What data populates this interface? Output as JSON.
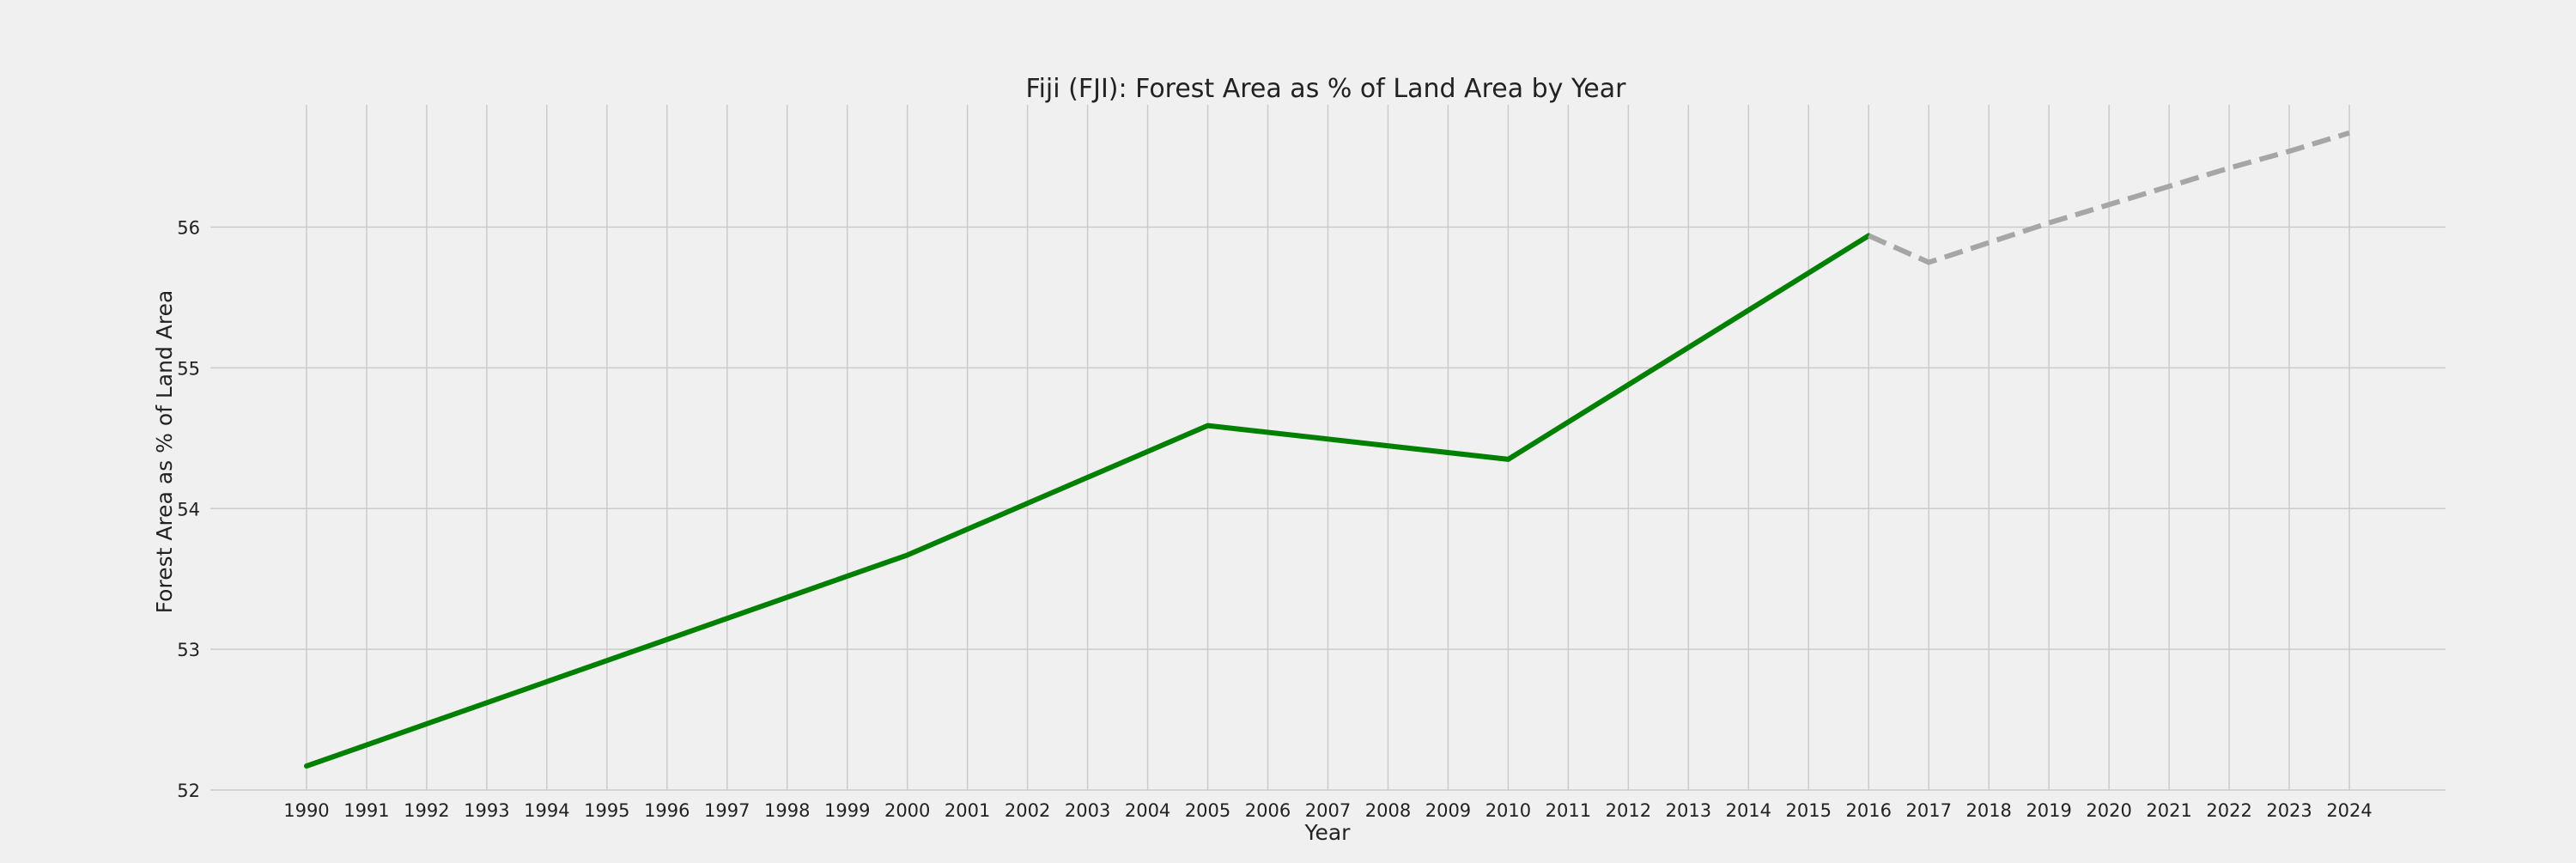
{
  "chart_data": {
    "type": "line",
    "title": "Fiji (FJI): Forest Area as % of Land Area by Year",
    "xlabel": "Year",
    "ylabel": "Forest Area as % of Land Area",
    "x_categories": [
      "1990",
      "1991",
      "1992",
      "1993",
      "1994",
      "1995",
      "1996",
      "1997",
      "1998",
      "1999",
      "2000",
      "2001",
      "2002",
      "2003",
      "2004",
      "2005",
      "2006",
      "2007",
      "2008",
      "2009",
      "2010",
      "2011",
      "2012",
      "2013",
      "2014",
      "2015",
      "2016",
      "2017",
      "2018",
      "2019",
      "2020",
      "2021",
      "2022",
      "2023",
      "2024"
    ],
    "y_ticks": [
      52,
      53,
      54,
      55,
      56
    ],
    "ylim": [
      52,
      56.87
    ],
    "xlim": [
      1988.4,
      2025.6
    ],
    "grid": true,
    "legend": "none",
    "series": [
      {
        "style": "solid",
        "color": "#008000",
        "x": [
          1990,
          2000,
          2005,
          2010,
          2016
        ],
        "y": [
          52.17,
          53.67,
          54.59,
          54.35,
          55.94
        ]
      },
      {
        "style": "dashed",
        "color": "#a6a6a6",
        "x": [
          2016,
          2017,
          2018,
          2019,
          2020,
          2021,
          2022,
          2023,
          2024
        ],
        "y": [
          55.94,
          55.75,
          55.89,
          56.03,
          56.16,
          56.29,
          56.42,
          56.54,
          56.67
        ]
      }
    ]
  }
}
